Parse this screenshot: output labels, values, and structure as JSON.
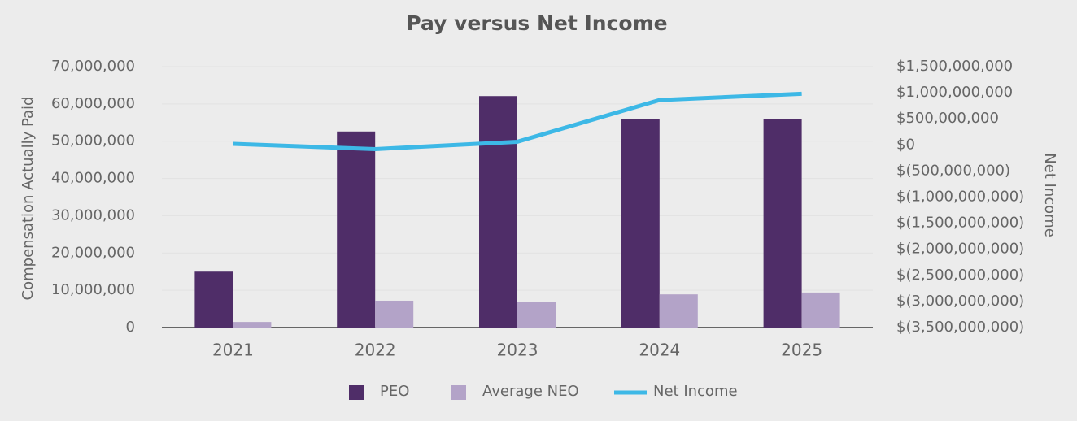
{
  "chart_data": {
    "type": "bar",
    "title": "Pay versus Net Income",
    "y_label": "Compensation Actually Paid",
    "y2_label": "Net Income",
    "categories": [
      "2021",
      "2022",
      "2023",
      "2024",
      "2025"
    ],
    "series": [
      {
        "name": "PEO",
        "color": "#4f2d68",
        "values": [
          15000000,
          52600000,
          62100000,
          56000000,
          56000000
        ]
      },
      {
        "name": "Average NEO",
        "color": "#b3a3c8",
        "values": [
          1500000,
          7200000,
          6800000,
          8900000,
          9400000
        ]
      },
      {
        "name": "Net Income",
        "color": "#3db8e6",
        "type": "line",
        "axis": "y2",
        "values": [
          20000000,
          -80000000,
          60000000,
          860000000,
          980000000
        ]
      }
    ],
    "ylim": [
      0,
      70000000
    ],
    "yticks": [
      0,
      {
        "value": 10000000,
        "label": "10,000,000"
      },
      {
        "value": 20000000,
        "label": "20,000,000"
      },
      {
        "value": 30000000,
        "label": "30,000,000"
      },
      {
        "value": 40000000,
        "label": "40,000,000"
      },
      {
        "value": 50000000,
        "label": "50,000,000"
      },
      {
        "value": 60000000,
        "label": "60,000,000"
      },
      {
        "value": 70000000,
        "label": "70,000,000"
      }
    ],
    "y2lim": [
      -3500000000,
      1500000000
    ],
    "y2ticks": [
      {
        "value": -3500000000,
        "label": "$(3,500,000,000)"
      },
      {
        "value": -3000000000,
        "label": "$(3,000,000,000)"
      },
      {
        "value": -2500000000,
        "label": "$(2,500,000,000)"
      },
      {
        "value": -2000000000,
        "label": "$(2,000,000,000)"
      },
      {
        "value": -1500000000,
        "label": "$(1,500,000,000)"
      },
      {
        "value": -1000000000,
        "label": "$(1,000,000,000)"
      },
      {
        "value": -500000000,
        "label": "$(500,000,000)"
      },
      {
        "value": 0,
        "label": "$0"
      },
      {
        "value": 500000000,
        "label": "$500,000,000"
      },
      {
        "value": 1000000000,
        "label": "$1,000,000,000"
      },
      {
        "value": 1500000000,
        "label": "$1,500,000,000"
      }
    ],
    "grid": true,
    "legend": "bottom"
  }
}
